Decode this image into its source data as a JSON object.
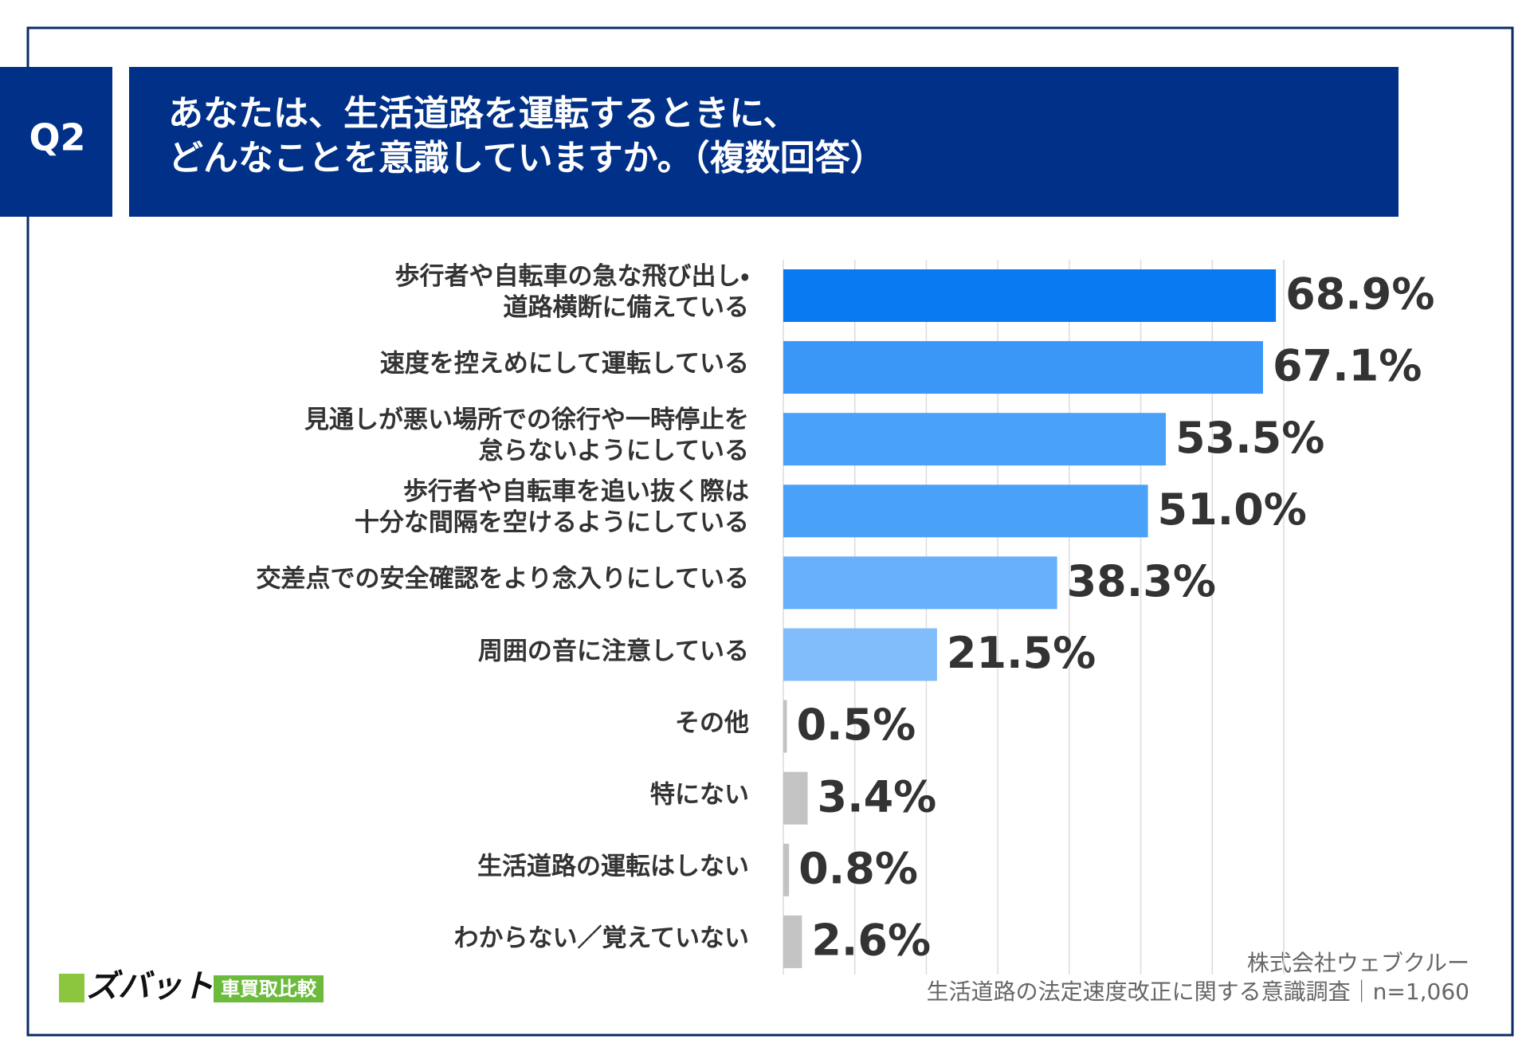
{
  "header": {
    "badge": "Q2",
    "title": [
      "あなたは、生活道路を運転するときに、",
      "どんなことを意識していますか。（複数回答）"
    ]
  },
  "chart_data": {
    "type": "hbar",
    "categories": [
      "歩行者や自転車の急な飛び出し・\n道路横断に備えている",
      "速度を控えめにして運転している",
      "見通しが悪い場所での徐行や一時停止を\n怠らないようにしている",
      "歩行者や自転車を追い抜く際は\n十分な間隔を空けるようにしている",
      "交差点での安全確認をより念入りにしている",
      "周囲の音に注意している",
      "その他",
      "特にない",
      "生活道路の運転はしない",
      "わからない／覚えていない"
    ],
    "values": [
      68.9,
      67.1,
      53.5,
      51.0,
      38.3,
      21.5,
      0.5,
      3.4,
      0.8,
      2.6
    ],
    "value_labels": [
      "68.9%",
      "67.1%",
      "53.5%",
      "51.0%",
      "38.3%",
      "21.5%",
      "0.5%",
      "3.4%",
      "0.8%",
      "2.6%"
    ],
    "colors": [
      "#0a7af2",
      "#3a97f7",
      "#4aa1f8",
      "#4aa1f8",
      "#68b0f9",
      "#80bdfa",
      "#c3c3c3",
      "#c3c3c3",
      "#c3c3c3",
      "#c3c3c3"
    ],
    "xlim": [
      0,
      70
    ],
    "xticks": [
      0,
      10,
      20,
      30,
      40,
      50,
      60,
      70
    ],
    "grid": true
  },
  "footer": {
    "company": "株式会社ウェブクルー",
    "survey": "生活道路の法定速度改正に関する意識調査｜n=1,060"
  },
  "logo": {
    "brand": "ズバット",
    "service": "車買取比較"
  }
}
